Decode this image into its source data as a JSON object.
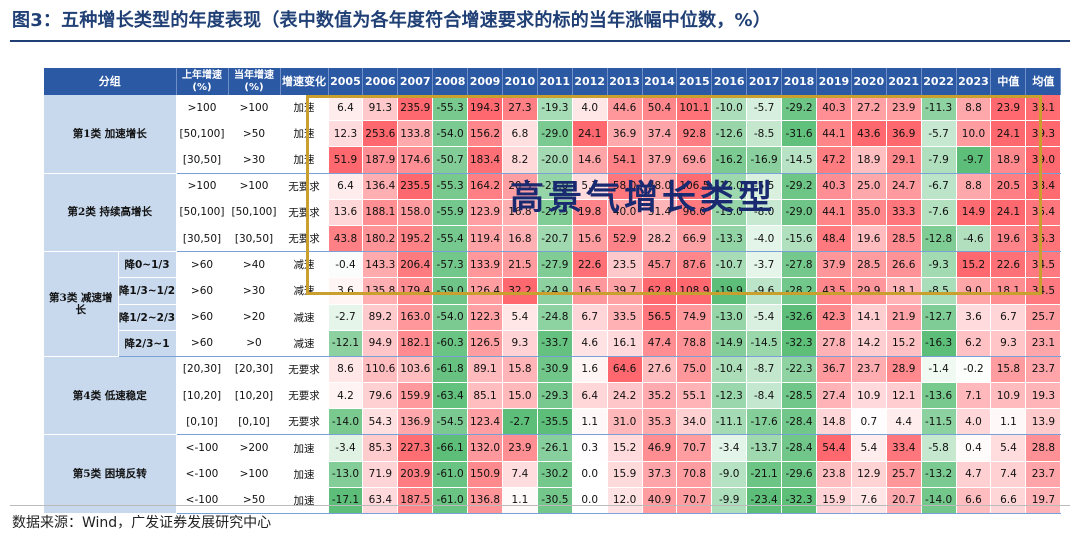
{
  "title": "图3：五种增长类型的年度表现（表中数值为各年度符合增速要求的标的当年涨幅中位数，%）",
  "source": "数据来源：Wind，广发证券发展研究中心",
  "overlay_text": "高景气增长类型",
  "colors": {
    "header_bg": "#2b59a4",
    "group_bg": "#c8d9ee",
    "group_text": "#b2202a",
    "high": "#f86b6e",
    "low": "#5fbf78",
    "highlight_border": "#c9a02e"
  },
  "chart_data": {
    "type": "table",
    "headers": {
      "group": "分组",
      "prev": "上年增速(%)",
      "curr": "当年增速(%)",
      "change": "增速变化",
      "years": [
        "2005",
        "2006",
        "2007",
        "2008",
        "2009",
        "2010",
        "2011",
        "2012",
        "2013",
        "2014",
        "2015",
        "2016",
        "2017",
        "2018",
        "2019",
        "2020",
        "2021",
        "2022",
        "2023"
      ],
      "median": "中值",
      "mean": "均值"
    },
    "groups": [
      {
        "name": "第1类 加速增长",
        "rows": [
          {
            "sub": "",
            "prev": ">100",
            "curr": ">100",
            "change": "加速",
            "values": [
              6.4,
              91.3,
              235.9,
              -55.3,
              194.3,
              27.3,
              -19.3,
              4.0,
              44.6,
              50.4,
              101.1,
              -10.0,
              -5.7,
              -29.2,
              40.3,
              27.2,
              23.9,
              -11.3,
              8.8
            ],
            "median": 23.9,
            "mean": 38.1
          },
          {
            "sub": "",
            "prev": "[50,100]",
            "curr": ">50",
            "change": "加速",
            "values": [
              12.3,
              253.6,
              133.8,
              -54.0,
              156.2,
              6.8,
              -29.0,
              24.1,
              36.9,
              37.4,
              92.8,
              -12.6,
              -8.5,
              -31.6,
              44.1,
              43.6,
              36.9,
              -5.7,
              10.0
            ],
            "median": 24.1,
            "mean": 39.3
          },
          {
            "sub": "",
            "prev": "[30,50]",
            "curr": ">30",
            "change": "加速",
            "values": [
              51.9,
              187.9,
              174.6,
              -50.7,
              183.4,
              8.2,
              -20.0,
              14.6,
              54.1,
              37.9,
              69.6,
              -16.2,
              -16.9,
              -14.5,
              47.2,
              18.9,
              29.1,
              -7.9,
              -9.7
            ],
            "median": 18.9,
            "mean": 39.0
          }
        ]
      },
      {
        "name": "第2类 持续高增长",
        "rows": [
          {
            "sub": "",
            "prev": ">100",
            "curr": ">100",
            "change": "无要求",
            "values": [
              6.4,
              136.4,
              235.5,
              -55.3,
              164.2,
              20.5,
              -23.0,
              5.7,
              58.0,
              38.0,
              106.5,
              -12.0,
              -5.5,
              -29.2,
              40.3,
              25.0,
              24.7,
              -6.7,
              8.8
            ],
            "median": 20.5,
            "mean": 38.4
          },
          {
            "sub": "",
            "prev": "[50,100]",
            "curr": "[50,100]",
            "change": "无要求",
            "values": [
              13.6,
              188.1,
              158.0,
              -55.9,
              123.9,
              16.8,
              -27.5,
              19.8,
              40.0,
              31.4,
              96.0,
              -13.0,
              -8.0,
              -29.0,
              44.1,
              35.0,
              33.3,
              -7.6,
              14.9
            ],
            "median": 24.1,
            "mean": 35.4
          },
          {
            "sub": "",
            "prev": "[30,50]",
            "curr": "[30,50]",
            "change": "无要求",
            "values": [
              43.8,
              180.2,
              195.2,
              -55.4,
              119.4,
              16.8,
              -20.7,
              15.6,
              52.9,
              28.2,
              66.9,
              -13.3,
              -4.0,
              -15.6,
              48.4,
              19.6,
              28.5,
              -12.8,
              -4.6
            ],
            "median": 19.6,
            "mean": 36.3
          }
        ]
      },
      {
        "name": "第3类 减速增长",
        "rows": [
          {
            "sub": "降0~1/3",
            "prev": ">60",
            "curr": ">40",
            "change": "减速",
            "values": [
              -0.4,
              143.3,
              206.4,
              -57.3,
              133.9,
              21.5,
              -27.9,
              22.6,
              23.5,
              45.7,
              87.6,
              -10.7,
              -3.7,
              -27.8,
              37.9,
              28.5,
              26.6,
              -9.3,
              15.2
            ],
            "median": 22.6,
            "mean": 34.5
          },
          {
            "sub": "降1/3~1/2",
            "prev": ">60",
            "curr": ">30",
            "change": "减速",
            "values": [
              3.6,
              135.8,
              179.4,
              -59.0,
              126.4,
              32.2,
              -24.9,
              16.5,
              39.7,
              62.8,
              108.9,
              -19.9,
              -9.6,
              -28.2,
              43.5,
              29.9,
              18.1,
              -8.5,
              9.0
            ],
            "median": 18.1,
            "mean": 34.5
          },
          {
            "sub": "降1/2~2/3",
            "prev": ">60",
            "curr": ">20",
            "change": "减速",
            "values": [
              -2.7,
              89.2,
              163.0,
              -54.0,
              122.3,
              5.4,
              -24.8,
              6.7,
              33.5,
              56.5,
              74.9,
              -13.0,
              -5.4,
              -32.6,
              42.3,
              14.1,
              21.9,
              -12.7,
              3.6
            ],
            "median": 6.7,
            "mean": 25.7
          },
          {
            "sub": "降2/3~1",
            "prev": ">60",
            "curr": ">0",
            "change": "减速",
            "values": [
              -12.1,
              94.9,
              182.1,
              -60.3,
              126.5,
              9.3,
              -33.7,
              4.6,
              16.1,
              47.4,
              78.8,
              -14.9,
              -14.5,
              -32.3,
              27.8,
              14.2,
              15.2,
              -16.3,
              6.2
            ],
            "median": 9.3,
            "mean": 23.1
          }
        ]
      },
      {
        "name": "第4类 低速稳定",
        "rows": [
          {
            "sub": "",
            "prev": "[20,30]",
            "curr": "[20,30]",
            "change": "无要求",
            "values": [
              8.6,
              110.6,
              103.6,
              -61.8,
              89.1,
              15.8,
              -30.9,
              1.6,
              64.6,
              27.6,
              75.0,
              -10.4,
              -8.7,
              -22.3,
              36.7,
              23.7,
              28.9,
              -1.4,
              -0.2
            ],
            "median": 15.8,
            "mean": 23.7
          },
          {
            "sub": "",
            "prev": "[10,20]",
            "curr": "[10,20]",
            "change": "无要求",
            "values": [
              4.2,
              79.6,
              159.9,
              -63.4,
              85.1,
              15.0,
              -29.3,
              6.4,
              24.2,
              35.2,
              55.1,
              -12.3,
              -8.4,
              -28.5,
              27.4,
              10.9,
              12.1,
              -13.6,
              7.1
            ],
            "median": 10.9,
            "mean": 19.3
          },
          {
            "sub": "",
            "prev": "[0,10]",
            "curr": "[0,10]",
            "change": "无要求",
            "values": [
              -14.0,
              54.3,
              136.9,
              -54.5,
              123.4,
              -2.7,
              -35.5,
              1.1,
              31.0,
              35.3,
              34.0,
              -11.1,
              -17.6,
              -28.4,
              14.8,
              0.7,
              4.4,
              -11.5,
              4.0
            ],
            "median": 1.1,
            "mean": 13.9
          }
        ]
      },
      {
        "name": "第5类 困境反转",
        "rows": [
          {
            "sub": "",
            "prev": "<-100",
            "curr": ">200",
            "change": "加速",
            "values": [
              -3.4,
              85.3,
              227.3,
              -66.1,
              132.0,
              23.9,
              -26.1,
              0.3,
              15.2,
              46.9,
              70.7,
              -3.4,
              -13.7,
              -28.4,
              54.4,
              5.4,
              33.4,
              -5.8,
              0.4
            ],
            "median": 5.4,
            "mean": 28.8
          },
          {
            "sub": "",
            "prev": "<-100",
            "curr": ">100",
            "change": "加速",
            "values": [
              -13.0,
              71.9,
              203.9,
              -61.0,
              150.9,
              7.4,
              -30.2,
              0.0,
              15.9,
              37.3,
              70.8,
              -9.0,
              -21.1,
              -29.6,
              23.8,
              12.9,
              25.7,
              -13.2,
              4.7
            ],
            "median": 7.4,
            "mean": 23.7
          },
          {
            "sub": "",
            "prev": "<-100",
            "curr": ">50",
            "change": "加速",
            "values": [
              -17.1,
              63.4,
              187.5,
              -61.0,
              136.8,
              1.1,
              -30.5,
              0.0,
              12.0,
              40.9,
              70.7,
              -9.9,
              -23.4,
              -32.3,
              15.9,
              7.6,
              20.7,
              -14.0,
              6.6
            ],
            "median": 6.6,
            "mean": 19.7
          }
        ]
      }
    ]
  }
}
